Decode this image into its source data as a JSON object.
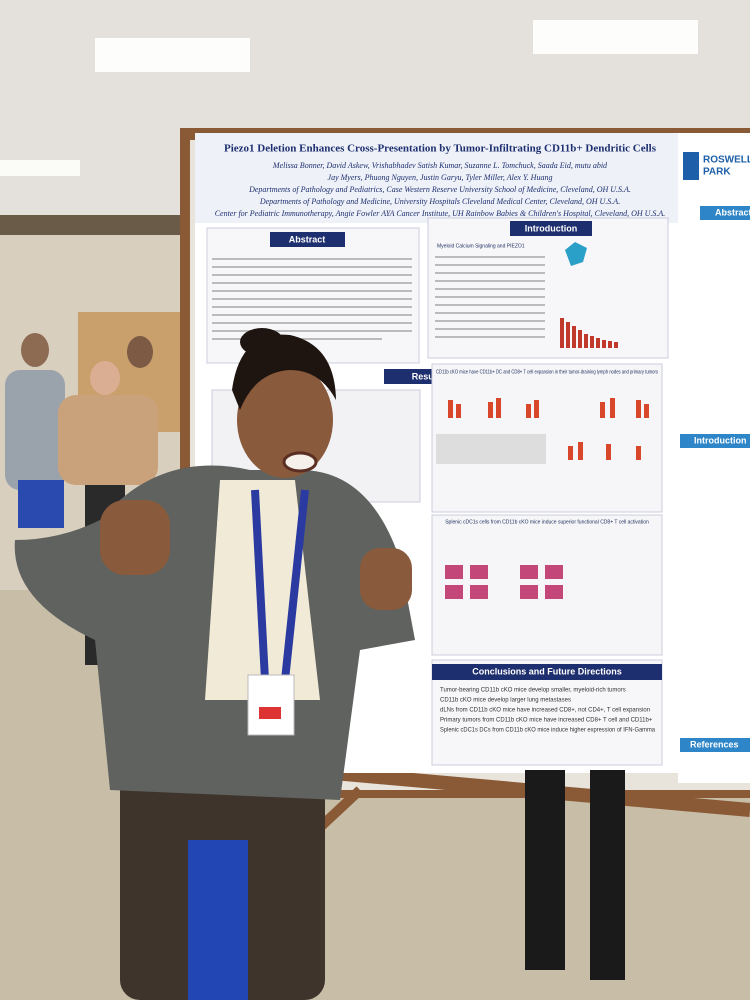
{
  "poster": {
    "title": "Piezo1 Deletion Enhances Cross-Presentation by Tumor-Infiltrating CD11b+ Dendritic Cells",
    "authors": [
      "Melissa Bonner, David Askew, Vrishabhadev Satish Kumar, Suzanne L. Tomchuck, Saada Eid, mutu abid",
      "Jay Myers, Phuong Nguyen, Justin Garyu, Tyler Miller, Alex Y. Huang"
    ],
    "affiliations": [
      "Departments of Pathology and Pediatrics, Case Western Reserve University School of Medicine, Cleveland, OH U.S.A.",
      "Departments of Pathology and Medicine, University Hospitals Cleveland Medical Center, Cleveland, OH U.S.A.",
      "Center for Pediatric Immunotherapy, Angie Fowler AYA Cancer Institute, UH Rainbow Babies & Children's Hospital, Cleveland, OH U.S.A."
    ],
    "sections": {
      "abstract": {
        "heading": "Abstract"
      },
      "introduction": {
        "heading": "Introduction",
        "subheading": "Myeloid Calcium Signaling and PIEZO1"
      },
      "results": {
        "heading": "Results",
        "figure_titles": [
          "CD11b cKO mice have CD11b+ DC and CD8+ T cell expansion in their tumor-draining lymph nodes and primary tumors",
          "Splenic cDC1s cells from CD11b cKO mice induce superior functional CD8+ T cell activation"
        ]
      },
      "conclusions": {
        "heading": "Conclusions and Future Directions",
        "points": [
          "Tumor-bearing CD11b cKO mice develop smaller, myeloid-rich tumors",
          "CD11b cKO mice develop larger lung metastases",
          "dLNs from CD11b cKO mice have increased CD8+, not CD4+, T cell expansion",
          "Primary tumors from CD11b cKO mice have increased CD8+ T cell and CD11b+",
          "Splenic cDC1s DCs from CD11b cKO mice induce higher expression of IFN-Gamma"
        ]
      }
    }
  },
  "adjacent_poster": {
    "institution": [
      "ROSWELL",
      "PARK"
    ],
    "headings": [
      "Abstract",
      "Introduction",
      "References"
    ]
  }
}
